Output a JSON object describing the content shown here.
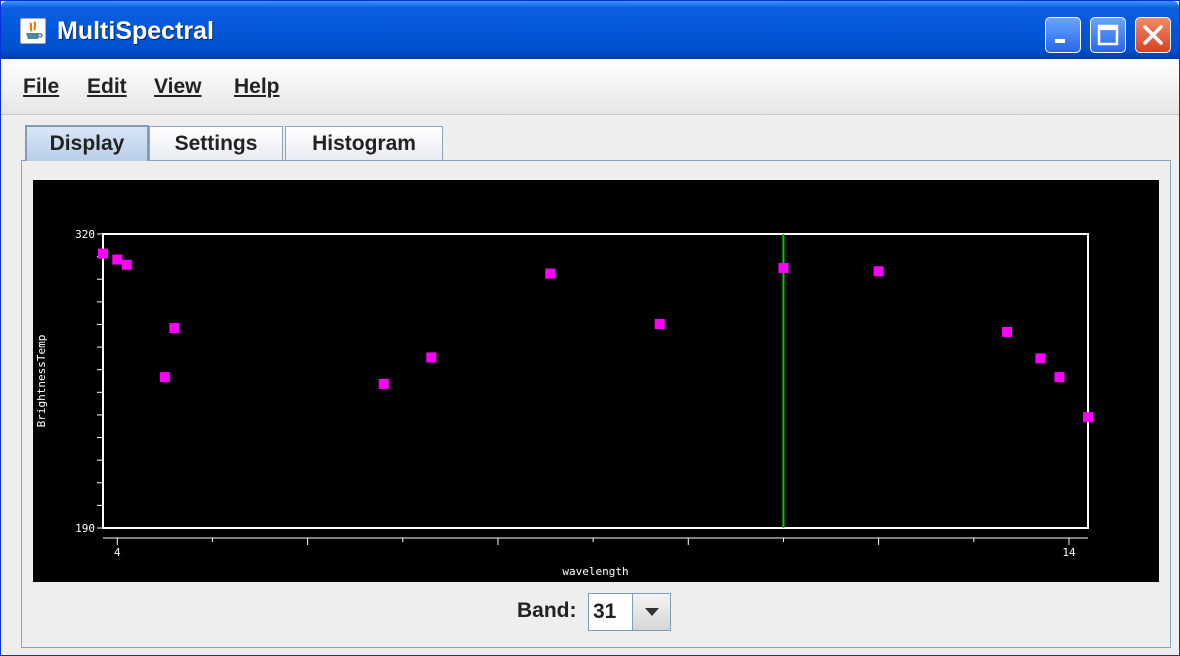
{
  "window": {
    "title": "MultiSpectral"
  },
  "menu": {
    "file": "File",
    "edit": "Edit",
    "view": "View",
    "help": "Help"
  },
  "tabs": [
    {
      "label": "Display",
      "active": true
    },
    {
      "label": "Settings",
      "active": false
    },
    {
      "label": "Histogram",
      "active": false
    }
  ],
  "band": {
    "label": "Band:",
    "value": "31"
  },
  "colors": {
    "points": "#ff00ff",
    "cursor_line": "#00cc00",
    "frame": "#ffffff",
    "plot_bg": "#000000"
  },
  "chart_data": {
    "type": "scatter",
    "xlabel": "wavelength",
    "ylabel": "BrightnessTemp",
    "xlim": [
      3.85,
      14.2
    ],
    "ylim": [
      190,
      320
    ],
    "x_tick_labels": [
      "4",
      "14"
    ],
    "y_tick_labels": [
      "320",
      "190"
    ],
    "selected_x": 11.0,
    "points": [
      {
        "x": 3.85,
        "y": 311.3
      },
      {
        "x": 4.0,
        "y": 308.7
      },
      {
        "x": 4.1,
        "y": 306.4
      },
      {
        "x": 4.5,
        "y": 256.7
      },
      {
        "x": 4.6,
        "y": 278.4
      },
      {
        "x": 6.8,
        "y": 253.7
      },
      {
        "x": 7.3,
        "y": 265.4
      },
      {
        "x": 8.55,
        "y": 302.5
      },
      {
        "x": 9.7,
        "y": 280.2
      },
      {
        "x": 11.0,
        "y": 305.0
      },
      {
        "x": 12.0,
        "y": 303.5
      },
      {
        "x": 13.35,
        "y": 276.7
      },
      {
        "x": 13.7,
        "y": 265.0
      },
      {
        "x": 13.9,
        "y": 256.7
      },
      {
        "x": 14.2,
        "y": 239.0
      }
    ]
  }
}
